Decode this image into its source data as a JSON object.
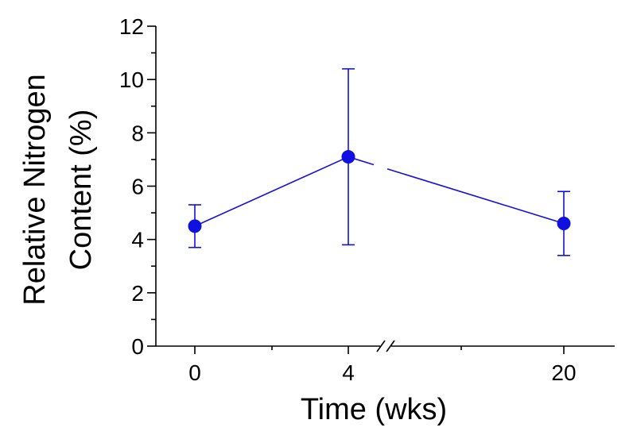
{
  "chart_data": {
    "type": "scatter",
    "title": "",
    "xlabel": "Time (wks)",
    "ylabel_lines": [
      "Relative Nitrogen",
      "Content (%)"
    ],
    "ylim": [
      0,
      12
    ],
    "y_ticks": [
      "0",
      "2",
      "4",
      "6",
      "8",
      "10",
      "12"
    ],
    "x_tick_labels": [
      "0",
      "4",
      "20"
    ],
    "x_axis_break": "between 4 and 20",
    "grid": false,
    "legend": "none",
    "colors": {
      "series": "#1010e0",
      "axis": "#000000"
    },
    "series": [
      {
        "x": [
          0,
          4,
          20
        ],
        "y": [
          4.5,
          7.1,
          4.6
        ],
        "error_low": [
          3.7,
          3.8,
          3.4
        ],
        "error_high": [
          5.3,
          10.4,
          5.8
        ]
      }
    ]
  }
}
